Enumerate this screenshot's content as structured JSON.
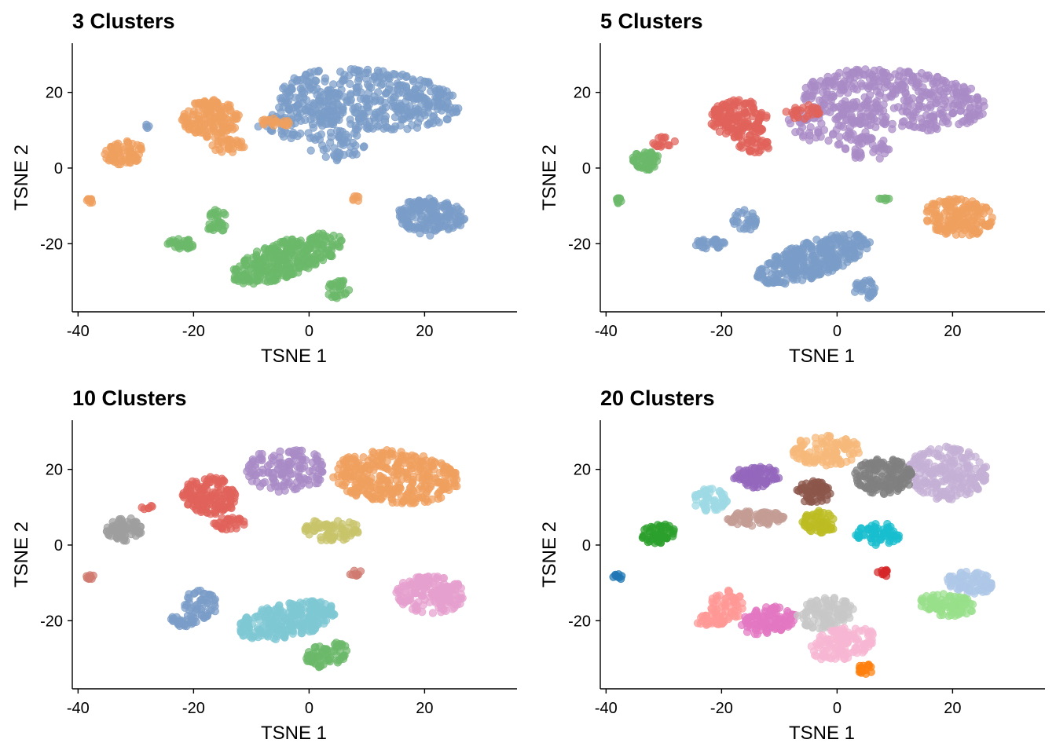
{
  "chart_data": [
    {
      "type": "scatter",
      "title": "3 Clusters",
      "xlabel": "TSNE 1",
      "ylabel": "TSNE 2",
      "xlim": [
        -41,
        36
      ],
      "ylim": [
        -38,
        33
      ],
      "xticks": [
        -40,
        -20,
        0,
        20
      ],
      "xtick_labels": [
        "-40",
        "-20",
        "0",
        "20"
      ],
      "yticks": [
        -20,
        0,
        20
      ],
      "ytick_labels": [
        "-20",
        "0",
        "20"
      ],
      "grid": false,
      "legend": "none",
      "colors": {
        "cluster-1": "#7a9cc8",
        "cluster-2": "#f0a05e",
        "cluster-3": "#6bb86a"
      },
      "regions": [
        {
          "cluster": "cluster-1",
          "cx": 10,
          "cy": 18,
          "rx": 16,
          "ry": 8,
          "rot": -8,
          "n": 420
        },
        {
          "cluster": "cluster-1",
          "cx": -3,
          "cy": 12,
          "rx": 6,
          "ry": 5,
          "rot": 0,
          "n": 60
        },
        {
          "cluster": "cluster-1",
          "cx": 5,
          "cy": 6,
          "rx": 5,
          "ry": 4,
          "rot": 0,
          "n": 50
        },
        {
          "cluster": "cluster-1",
          "cx": 21,
          "cy": -13,
          "rx": 6,
          "ry": 5,
          "rot": -10,
          "n": 170
        },
        {
          "cluster": "cluster-1",
          "cx": -28,
          "cy": 11,
          "rx": 0.7,
          "ry": 0.5,
          "rot": 0,
          "n": 4
        },
        {
          "cluster": "cluster-2",
          "cx": -17,
          "cy": 13,
          "rx": 5,
          "ry": 5,
          "rot": 0,
          "n": 150
        },
        {
          "cluster": "cluster-2",
          "cx": -14,
          "cy": 6,
          "rx": 3,
          "ry": 2,
          "rot": 0,
          "n": 30
        },
        {
          "cluster": "cluster-2",
          "cx": -32,
          "cy": 4,
          "rx": 3.5,
          "ry": 3,
          "rot": 30,
          "n": 70
        },
        {
          "cluster": "cluster-2",
          "cx": -38,
          "cy": -8.5,
          "rx": 0.8,
          "ry": 0.8,
          "rot": 0,
          "n": 8
        },
        {
          "cluster": "cluster-2",
          "cx": -6,
          "cy": 12,
          "rx": 3,
          "ry": 1.2,
          "rot": 0,
          "n": 20
        },
        {
          "cluster": "cluster-2",
          "cx": 8,
          "cy": -8,
          "rx": 1,
          "ry": 0.8,
          "rot": 0,
          "n": 6
        },
        {
          "cluster": "cluster-3",
          "cx": -4,
          "cy": -24,
          "rx": 11,
          "ry": 4.5,
          "rot": 30,
          "n": 320
        },
        {
          "cluster": "cluster-3",
          "cx": -22,
          "cy": -20,
          "rx": 2.5,
          "ry": 1.5,
          "rot": 0,
          "n": 30
        },
        {
          "cluster": "cluster-3",
          "cx": -16,
          "cy": -14,
          "rx": 2,
          "ry": 3,
          "rot": 0,
          "n": 30
        },
        {
          "cluster": "cluster-3",
          "cx": 5,
          "cy": -32,
          "rx": 2,
          "ry": 2.5,
          "rot": 0,
          "n": 30
        }
      ]
    },
    {
      "type": "scatter",
      "title": "5 Clusters",
      "xlabel": "TSNE 1",
      "ylabel": "TSNE 2",
      "xlim": [
        -41,
        36
      ],
      "ylim": [
        -38,
        33
      ],
      "xticks": [
        -40,
        -20,
        0,
        20
      ],
      "xtick_labels": [
        "-40",
        "-20",
        "0",
        "20"
      ],
      "yticks": [
        -20,
        0,
        20
      ],
      "ytick_labels": [
        "-20",
        "0",
        "20"
      ],
      "grid": false,
      "legend": "none",
      "colors": {
        "cluster-1": "#a98bc6",
        "cluster-2": "#e0625a",
        "cluster-3": "#6bb86a",
        "cluster-4": "#f0a05e",
        "cluster-5": "#7a9cc8"
      },
      "regions": [
        {
          "cluster": "cluster-1",
          "cx": 10,
          "cy": 18,
          "rx": 16,
          "ry": 8,
          "rot": -8,
          "n": 420
        },
        {
          "cluster": "cluster-1",
          "cx": -3,
          "cy": 12,
          "rx": 6,
          "ry": 5,
          "rot": 0,
          "n": 60
        },
        {
          "cluster": "cluster-1",
          "cx": 5,
          "cy": 6,
          "rx": 5,
          "ry": 4,
          "rot": 0,
          "n": 50
        },
        {
          "cluster": "cluster-2",
          "cx": -17,
          "cy": 13,
          "rx": 5,
          "ry": 5,
          "rot": 0,
          "n": 150
        },
        {
          "cluster": "cluster-2",
          "cx": -14,
          "cy": 6,
          "rx": 3,
          "ry": 2,
          "rot": 0,
          "n": 30
        },
        {
          "cluster": "cluster-2",
          "cx": -6,
          "cy": 15,
          "rx": 3,
          "ry": 2,
          "rot": 0,
          "n": 25
        },
        {
          "cluster": "cluster-2",
          "cx": -30,
          "cy": 7,
          "rx": 2,
          "ry": 1.5,
          "rot": 0,
          "n": 15
        },
        {
          "cluster": "cluster-3",
          "cx": -33,
          "cy": 2,
          "rx": 2.5,
          "ry": 2.5,
          "rot": 30,
          "n": 50
        },
        {
          "cluster": "cluster-3",
          "cx": -38,
          "cy": -8.5,
          "rx": 0.8,
          "ry": 0.8,
          "rot": 0,
          "n": 8
        },
        {
          "cluster": "cluster-3",
          "cx": 8,
          "cy": -8,
          "rx": 1.2,
          "ry": 0.8,
          "rot": 0,
          "n": 6
        },
        {
          "cluster": "cluster-4",
          "cx": 21,
          "cy": -13,
          "rx": 6,
          "ry": 5,
          "rot": -10,
          "n": 170
        },
        {
          "cluster": "cluster-5",
          "cx": -4,
          "cy": -24,
          "rx": 11,
          "ry": 4.5,
          "rot": 30,
          "n": 320
        },
        {
          "cluster": "cluster-5",
          "cx": -22,
          "cy": -20,
          "rx": 2.5,
          "ry": 1.5,
          "rot": 0,
          "n": 30
        },
        {
          "cluster": "cluster-5",
          "cx": -16,
          "cy": -14,
          "rx": 2,
          "ry": 3,
          "rot": 0,
          "n": 30
        },
        {
          "cluster": "cluster-5",
          "cx": 5,
          "cy": -32,
          "rx": 2,
          "ry": 2.5,
          "rot": 0,
          "n": 30
        }
      ]
    },
    {
      "type": "scatter",
      "title": "10 Clusters",
      "xlabel": "TSNE 1",
      "ylabel": "TSNE 2",
      "xlim": [
        -41,
        36
      ],
      "ylim": [
        -38,
        33
      ],
      "xticks": [
        -40,
        -20,
        0,
        20
      ],
      "xtick_labels": [
        "-40",
        "-20",
        "0",
        "20"
      ],
      "yticks": [
        -20,
        0,
        20
      ],
      "ytick_labels": [
        "-20",
        "0",
        "20"
      ],
      "grid": false,
      "legend": "none",
      "colors": {
        "cluster-1": "#f0a05e",
        "cluster-2": "#a98bc6",
        "cluster-3": "#e0625a",
        "cluster-4": "#c8c46a",
        "cluster-5": "#9e9e9e",
        "cluster-6": "#d07a70",
        "cluster-7": "#e6a0cf",
        "cluster-8": "#7a9cc8",
        "cluster-9": "#7ec8d4",
        "cluster-10": "#6bb86a"
      },
      "regions": [
        {
          "cluster": "cluster-1",
          "cx": 15,
          "cy": 18,
          "rx": 11,
          "ry": 7,
          "rot": -8,
          "n": 340
        },
        {
          "cluster": "cluster-2",
          "cx": -4,
          "cy": 20,
          "rx": 7,
          "ry": 6,
          "rot": 0,
          "n": 140
        },
        {
          "cluster": "cluster-3",
          "cx": -17,
          "cy": 13,
          "rx": 5,
          "ry": 5,
          "rot": 0,
          "n": 140
        },
        {
          "cluster": "cluster-3",
          "cx": -14,
          "cy": 6,
          "rx": 3,
          "ry": 2,
          "rot": 0,
          "n": 30
        },
        {
          "cluster": "cluster-3",
          "cx": -28,
          "cy": 10,
          "rx": 1,
          "ry": 1,
          "rot": 0,
          "n": 6
        },
        {
          "cluster": "cluster-4",
          "cx": 4,
          "cy": 4,
          "rx": 5,
          "ry": 3,
          "rot": 0,
          "n": 70
        },
        {
          "cluster": "cluster-5",
          "cx": -32,
          "cy": 4,
          "rx": 3.5,
          "ry": 3,
          "rot": 30,
          "n": 70
        },
        {
          "cluster": "cluster-6",
          "cx": -38,
          "cy": -8.5,
          "rx": 0.8,
          "ry": 0.8,
          "rot": 0,
          "n": 8
        },
        {
          "cluster": "cluster-6",
          "cx": 8,
          "cy": -7.5,
          "rx": 1.2,
          "ry": 1,
          "rot": 0,
          "n": 8
        },
        {
          "cluster": "cluster-7",
          "cx": 21,
          "cy": -13,
          "rx": 6,
          "ry": 5,
          "rot": -10,
          "n": 170
        },
        {
          "cluster": "cluster-8",
          "cx": -19,
          "cy": -16,
          "rx": 3,
          "ry": 4,
          "rot": 0,
          "n": 50
        },
        {
          "cluster": "cluster-8",
          "cx": -22,
          "cy": -20,
          "rx": 2.5,
          "ry": 1.5,
          "rot": 0,
          "n": 30
        },
        {
          "cluster": "cluster-9",
          "cx": -4,
          "cy": -20,
          "rx": 9,
          "ry": 4.5,
          "rot": 20,
          "n": 260
        },
        {
          "cluster": "cluster-10",
          "cx": 3,
          "cy": -29,
          "rx": 4,
          "ry": 3,
          "rot": 30,
          "n": 70
        }
      ]
    },
    {
      "type": "scatter",
      "title": "20 Clusters",
      "xlabel": "TSNE 1",
      "ylabel": "TSNE 2",
      "xlim": [
        -41,
        36
      ],
      "ylim": [
        -38,
        33
      ],
      "xticks": [
        -40,
        -20,
        0,
        20
      ],
      "xtick_labels": [
        "-40",
        "-20",
        "0",
        "20"
      ],
      "yticks": [
        -20,
        0,
        20
      ],
      "ytick_labels": [
        "-20",
        "0",
        "20"
      ],
      "grid": false,
      "legend": "none",
      "colors": {
        "cluster-1": "#c5b0d5",
        "cluster-2": "#7f7f7f",
        "cluster-3": "#f7b97a",
        "cluster-4": "#9467bd",
        "cluster-5": "#8c564b",
        "cluster-6": "#bcbd22",
        "cluster-7": "#17becf",
        "cluster-8": "#c49c94",
        "cluster-9": "#9edae5",
        "cluster-10": "#2ca02c",
        "cluster-11": "#1f77b4",
        "cluster-12": "#d62728",
        "cluster-13": "#aec7e8",
        "cluster-14": "#98df8a",
        "cluster-15": "#ff9896",
        "cluster-16": "#e377c2",
        "cluster-17": "#c7c7c7",
        "cluster-18": "#f7b6d2",
        "cluster-19": "#ff7f0e",
        "cluster-20": "#dbdb8d"
      },
      "regions": [
        {
          "cluster": "cluster-1",
          "cx": 19,
          "cy": 19,
          "rx": 7,
          "ry": 7,
          "rot": -8,
          "n": 220
        },
        {
          "cluster": "cluster-2",
          "cx": 8,
          "cy": 18,
          "rx": 5,
          "ry": 5,
          "rot": 0,
          "n": 150
        },
        {
          "cluster": "cluster-3",
          "cx": -2,
          "cy": 25,
          "rx": 6,
          "ry": 4,
          "rot": 0,
          "n": 110
        },
        {
          "cluster": "cluster-4",
          "cx": -14,
          "cy": 18,
          "rx": 4,
          "ry": 3,
          "rot": 0,
          "n": 80
        },
        {
          "cluster": "cluster-5",
          "cx": -4,
          "cy": 14,
          "rx": 3,
          "ry": 3,
          "rot": 0,
          "n": 60
        },
        {
          "cluster": "cluster-6",
          "cx": -3,
          "cy": 6,
          "rx": 3,
          "ry": 3,
          "rot": 0,
          "n": 60
        },
        {
          "cluster": "cluster-7",
          "cx": 7,
          "cy": 3,
          "rx": 4,
          "ry": 3,
          "rot": 0,
          "n": 60
        },
        {
          "cluster": "cluster-8",
          "cx": -14,
          "cy": 7,
          "rx": 5,
          "ry": 2,
          "rot": 0,
          "n": 80
        },
        {
          "cluster": "cluster-9",
          "cx": -22,
          "cy": 12,
          "rx": 3,
          "ry": 3,
          "rot": 0,
          "n": 60
        },
        {
          "cluster": "cluster-10",
          "cx": -31,
          "cy": 3,
          "rx": 3,
          "ry": 2.5,
          "rot": 30,
          "n": 60
        },
        {
          "cluster": "cluster-11",
          "cx": -38,
          "cy": -8.5,
          "rx": 0.8,
          "ry": 0.8,
          "rot": 0,
          "n": 8
        },
        {
          "cluster": "cluster-12",
          "cx": 8,
          "cy": -7.5,
          "rx": 1.2,
          "ry": 1,
          "rot": 0,
          "n": 10
        },
        {
          "cluster": "cluster-13",
          "cx": 23,
          "cy": -10,
          "rx": 4,
          "ry": 3,
          "rot": -10,
          "n": 90
        },
        {
          "cluster": "cluster-14",
          "cx": 19,
          "cy": -16,
          "rx": 5,
          "ry": 3,
          "rot": -10,
          "n": 90
        },
        {
          "cluster": "cluster-15",
          "cx": -19,
          "cy": -16,
          "rx": 3,
          "ry": 4,
          "rot": 0,
          "n": 55
        },
        {
          "cluster": "cluster-15",
          "cx": -22,
          "cy": -20,
          "rx": 2.5,
          "ry": 1.5,
          "rot": 0,
          "n": 30
        },
        {
          "cluster": "cluster-16",
          "cx": -12,
          "cy": -20,
          "rx": 5,
          "ry": 3.5,
          "rot": 20,
          "n": 110
        },
        {
          "cluster": "cluster-17",
          "cx": -2,
          "cy": -18,
          "rx": 5,
          "ry": 4,
          "rot": 20,
          "n": 110
        },
        {
          "cluster": "cluster-18",
          "cx": 1,
          "cy": -26,
          "rx": 6,
          "ry": 4,
          "rot": 30,
          "n": 120
        },
        {
          "cluster": "cluster-19",
          "cx": 5,
          "cy": -33,
          "rx": 1.5,
          "ry": 1.5,
          "rot": 0,
          "n": 20
        }
      ]
    }
  ]
}
